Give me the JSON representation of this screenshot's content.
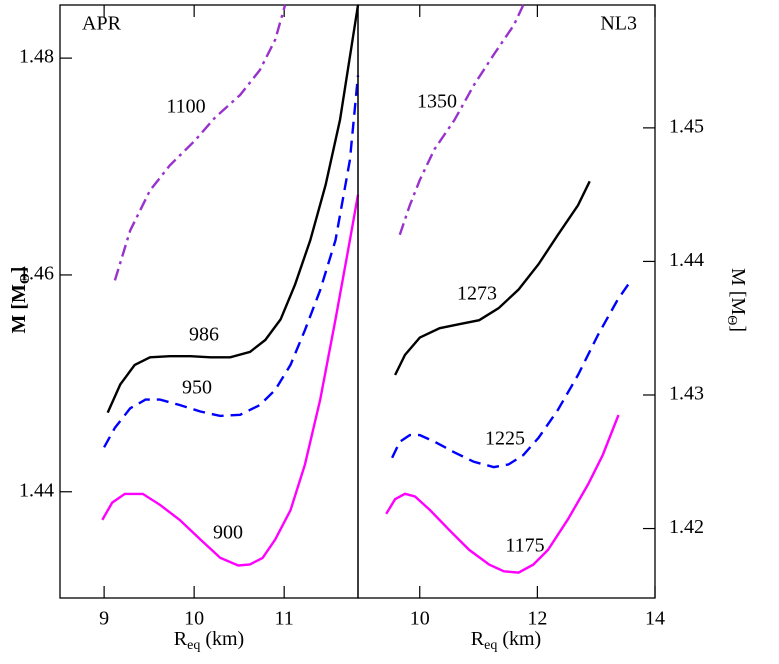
{
  "chart_data": [
    {
      "type": "line",
      "title": "APR",
      "xlabel": [
        "R",
        "eq",
        " (km)"
      ],
      "ylabel": [
        "M [M",
        "Θ",
        "]"
      ],
      "xlim": [
        8.51,
        11.82
      ],
      "xticks": [
        9,
        10,
        11
      ],
      "ylim": [
        1.4302,
        1.4849
      ],
      "yticks": [
        1.44,
        1.46,
        1.48
      ],
      "series": [
        {
          "name": "900",
          "color": "#ff00ff",
          "dash": "solid",
          "x": [
            8.98,
            9.09,
            9.23,
            9.43,
            9.62,
            9.84,
            10.07,
            10.29,
            10.49,
            10.62,
            10.76,
            10.9,
            11.07,
            11.23,
            11.4,
            11.57,
            11.73,
            11.82
          ],
          "values": [
            1.4374,
            1.439,
            1.4398,
            1.4398,
            1.4388,
            1.4374,
            1.4356,
            1.4339,
            1.4332,
            1.4333,
            1.4339,
            1.4356,
            1.4383,
            1.4425,
            1.4485,
            1.4559,
            1.4632,
            1.4674
          ]
        },
        {
          "name": "950",
          "color": "#0000ff",
          "dash": "dashed",
          "x": [
            9.0,
            9.12,
            9.29,
            9.46,
            9.62,
            9.84,
            10.07,
            10.29,
            10.51,
            10.73,
            10.9,
            11.07,
            11.23,
            11.4,
            11.57,
            11.73,
            11.82
          ],
          "values": [
            1.4441,
            1.4459,
            1.4477,
            1.4485,
            1.4485,
            1.448,
            1.4474,
            1.447,
            1.4471,
            1.448,
            1.4494,
            1.4517,
            1.4549,
            1.4586,
            1.4632,
            1.4706,
            1.4784
          ]
        },
        {
          "name": "986",
          "color": "#000000",
          "dash": "solid",
          "x": [
            9.04,
            9.18,
            9.34,
            9.51,
            9.73,
            9.96,
            10.18,
            10.4,
            10.62,
            10.79,
            10.96,
            11.12,
            11.29,
            11.46,
            11.62,
            11.82
          ],
          "values": [
            1.4473,
            1.4499,
            1.4517,
            1.4524,
            1.4525,
            1.4525,
            1.4524,
            1.4524,
            1.4529,
            1.454,
            1.4559,
            1.4591,
            1.4632,
            1.4683,
            1.4743,
            1.4849
          ]
        },
        {
          "name": "1100",
          "color": "#9932cc",
          "dash": "dashdot",
          "x": [
            9.12,
            9.29,
            9.51,
            9.73,
            10.01,
            10.23,
            10.51,
            10.73,
            10.9,
            11.01
          ],
          "values": [
            1.4595,
            1.4641,
            1.4678,
            1.4701,
            1.4724,
            1.4745,
            1.4766,
            1.4789,
            1.4817,
            1.4849
          ]
        }
      ]
    },
    {
      "type": "line",
      "title": "NL3",
      "yaxis_side": "right",
      "xlabel": [
        "R",
        "eq",
        " (km)"
      ],
      "ylabel": [
        "M [M",
        "Θ",
        "]"
      ],
      "xlim": [
        8.95,
        14
      ],
      "xticks": [
        10,
        12,
        14
      ],
      "ylim": [
        1.4148,
        1.4592
      ],
      "yticks": [
        1.42,
        1.43,
        1.44,
        1.45
      ],
      "series": [
        {
          "name": "1175",
          "color": "#ff00ff",
          "dash": "solid",
          "x": [
            9.43,
            9.58,
            9.75,
            9.92,
            10.17,
            10.5,
            10.84,
            11.18,
            11.43,
            11.68,
            11.93,
            12.18,
            12.52,
            12.86,
            13.11,
            13.38
          ],
          "values": [
            1.4211,
            1.4222,
            1.4226,
            1.4224,
            1.4214,
            1.4199,
            1.4184,
            1.4173,
            1.4168,
            1.4167,
            1.4173,
            1.4184,
            1.4207,
            1.4233,
            1.4255,
            1.4285
          ]
        },
        {
          "name": "1225",
          "color": "#0000ff",
          "dash": "dashed",
          "x": [
            9.53,
            9.66,
            9.83,
            10.0,
            10.25,
            10.59,
            10.92,
            11.26,
            11.51,
            11.76,
            12.02,
            12.35,
            12.69,
            13.03,
            13.36,
            13.58
          ],
          "values": [
            1.4253,
            1.4265,
            1.427,
            1.427,
            1.4265,
            1.4257,
            1.425,
            1.4246,
            1.4248,
            1.4255,
            1.4268,
            1.4289,
            1.4315,
            1.4345,
            1.4371,
            1.4385
          ]
        },
        {
          "name": "1273",
          "color": "#000000",
          "dash": "solid",
          "x": [
            9.58,
            9.75,
            10.0,
            10.34,
            10.67,
            11.01,
            11.34,
            11.68,
            12.02,
            12.35,
            12.69,
            12.89
          ],
          "values": [
            1.4315,
            1.433,
            1.4343,
            1.435,
            1.4353,
            1.4356,
            1.4365,
            1.4379,
            1.4398,
            1.442,
            1.4442,
            1.446
          ]
        },
        {
          "name": "1350",
          "color": "#9932cc",
          "dash": "dashdot",
          "x": [
            9.66,
            9.83,
            10.0,
            10.25,
            10.59,
            10.92,
            11.26,
            11.6,
            11.76
          ],
          "values": [
            1.442,
            1.4442,
            1.4461,
            1.4484,
            1.4506,
            1.4532,
            1.4555,
            1.4577,
            1.4592
          ]
        }
      ]
    }
  ]
}
